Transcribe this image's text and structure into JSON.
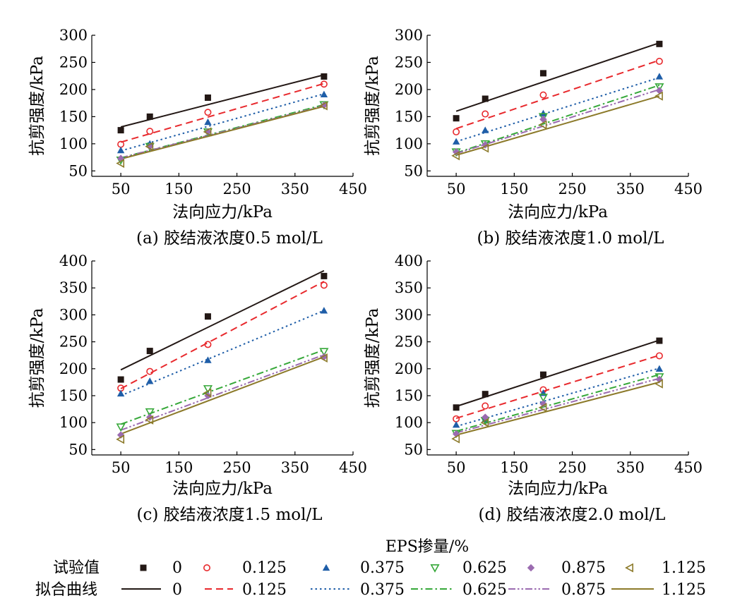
{
  "chart_data": [
    {
      "type": "scatter",
      "caption": "(a) 胶结液浓度0.5 mol/L",
      "xlabel": "法向应力/kPa",
      "ylabel": "抗剪强度/kPa",
      "xlim": [
        0,
        450
      ],
      "ylim": [
        40,
        300
      ],
      "xticks": [
        "50",
        "150",
        "250",
        "350",
        "450"
      ],
      "yticks": [
        "50",
        "100",
        "150",
        "200",
        "250",
        "300"
      ],
      "x": [
        50,
        100,
        200,
        400
      ],
      "series": [
        {
          "name": "0",
          "values": [
            125,
            150,
            185,
            224
          ],
          "fit": [
            131,
            227
          ]
        },
        {
          "name": "0.125",
          "values": [
            99,
            123,
            158,
            210
          ],
          "fit": [
            103,
            211
          ]
        },
        {
          "name": "0.375",
          "values": [
            88,
            100,
            140,
            191
          ],
          "fit": [
            87,
            192
          ]
        },
        {
          "name": "0.625",
          "values": [
            70,
            95,
            122,
            172
          ],
          "fit": [
            74,
            172
          ]
        },
        {
          "name": "0.875",
          "values": [
            73,
            95,
            122,
            171
          ],
          "fit": [
            74,
            170
          ]
        },
        {
          "name": "1.125",
          "values": [
            64,
            95,
            122,
            170
          ],
          "fit": [
            72,
            169
          ]
        }
      ]
    },
    {
      "type": "scatter",
      "caption": "(b) 胶结液浓度1.0 mol/L",
      "xlabel": "法向应力/kPa",
      "ylabel": "抗剪强度/kPa",
      "xlim": [
        0,
        450
      ],
      "ylim": [
        40,
        300
      ],
      "xticks": [
        "50",
        "150",
        "250",
        "350",
        "450"
      ],
      "yticks": [
        "50",
        "100",
        "150",
        "200",
        "250",
        "300"
      ],
      "x": [
        50,
        100,
        200,
        400
      ],
      "series": [
        {
          "name": "0",
          "values": [
            147,
            183,
            230,
            284
          ],
          "fit": [
            160,
            286
          ]
        },
        {
          "name": "0.125",
          "values": [
            122,
            155,
            190,
            252
          ],
          "fit": [
            128,
            254
          ]
        },
        {
          "name": "0.375",
          "values": [
            104,
            125,
            156,
            224
          ],
          "fit": [
            104,
            222
          ]
        },
        {
          "name": "0.625",
          "values": [
            85,
            100,
            150,
            205
          ],
          "fit": [
            83,
            208
          ]
        },
        {
          "name": "0.875",
          "values": [
            85,
            98,
            145,
            198
          ],
          "fit": [
            82,
            200
          ]
        },
        {
          "name": "1.125",
          "values": [
            78,
            92,
            135,
            188
          ],
          "fit": [
            79,
            188
          ]
        }
      ]
    },
    {
      "type": "scatter",
      "caption": "(c) 胶结液浓度1.5 mol/L",
      "xlabel": "法向应力/kPa",
      "ylabel": "抗剪强度/kPa",
      "xlim": [
        0,
        450
      ],
      "ylim": [
        40,
        400
      ],
      "xticks": [
        "50",
        "150",
        "250",
        "350",
        "450"
      ],
      "yticks": [
        "50",
        "100",
        "150",
        "200",
        "250",
        "300",
        "350",
        "400"
      ],
      "x": [
        50,
        100,
        200,
        400
      ],
      "series": [
        {
          "name": "0",
          "values": [
            180,
            233,
            297,
            372
          ],
          "fit": [
            198,
            382
          ]
        },
        {
          "name": "0.125",
          "values": [
            164,
            195,
            245,
            355
          ],
          "fit": [
            163,
            362
          ]
        },
        {
          "name": "0.375",
          "values": [
            154,
            177,
            216,
            308
          ],
          "fit": [
            150,
            308
          ]
        },
        {
          "name": "0.625",
          "values": [
            92,
            120,
            163,
            232
          ],
          "fit": [
            97,
            235
          ]
        },
        {
          "name": "0.875",
          "values": [
            77,
            110,
            150,
            222
          ],
          "fit": [
            86,
            226
          ]
        },
        {
          "name": "1.125",
          "values": [
            69,
            105,
            155,
            220
          ],
          "fit": [
            79,
            222
          ]
        }
      ]
    },
    {
      "type": "scatter",
      "caption": "(d) 胶结液浓度2.0 mol/L",
      "xlabel": "法向应力/kPa",
      "ylabel": "抗剪强度/kPa",
      "xlim": [
        0,
        450
      ],
      "ylim": [
        40,
        400
      ],
      "xticks": [
        "50",
        "150",
        "250",
        "350",
        "450"
      ],
      "yticks": [
        "50",
        "100",
        "150",
        "200",
        "250",
        "300",
        "350",
        "400"
      ],
      "x": [
        50,
        100,
        200,
        400
      ],
      "series": [
        {
          "name": "0",
          "values": [
            128,
            153,
            189,
            252
          ],
          "fit": [
            130,
            253
          ]
        },
        {
          "name": "0.125",
          "values": [
            107,
            131,
            161,
            224
          ],
          "fit": [
            108,
            225
          ]
        },
        {
          "name": "0.375",
          "values": [
            96,
            106,
            155,
            200
          ],
          "fit": [
            93,
            201
          ]
        },
        {
          "name": "0.625",
          "values": [
            80,
            104,
            147,
            185
          ],
          "fit": [
            84,
            189
          ]
        },
        {
          "name": "0.875",
          "values": [
            79,
            110,
            135,
            180
          ],
          "fit": [
            81,
            182
          ]
        },
        {
          "name": "1.125",
          "values": [
            70,
            100,
            128,
            172
          ],
          "fit": [
            77,
            175
          ]
        }
      ]
    }
  ],
  "legend": {
    "title": "EPS掺量/%",
    "row1_label": "试验值",
    "row2_label": "拟合曲线",
    "entries": [
      {
        "label": "0",
        "color": "#231815",
        "marker": "square",
        "dash": "solid"
      },
      {
        "label": "0.125",
        "color": "#e8292d",
        "marker": "circle",
        "dash": "dash"
      },
      {
        "label": "0.375",
        "color": "#1f5ea8",
        "marker": "triangle-up",
        "dash": "dot"
      },
      {
        "label": "0.625",
        "color": "#36a839",
        "marker": "triangle-down",
        "dash": "dashdot"
      },
      {
        "label": "0.875",
        "color": "#9b6bb0",
        "marker": "diamond",
        "dash": "dashdotdot"
      },
      {
        "label": "1.125",
        "color": "#8c7a2a",
        "marker": "triangle-left",
        "dash": "solid"
      }
    ]
  }
}
